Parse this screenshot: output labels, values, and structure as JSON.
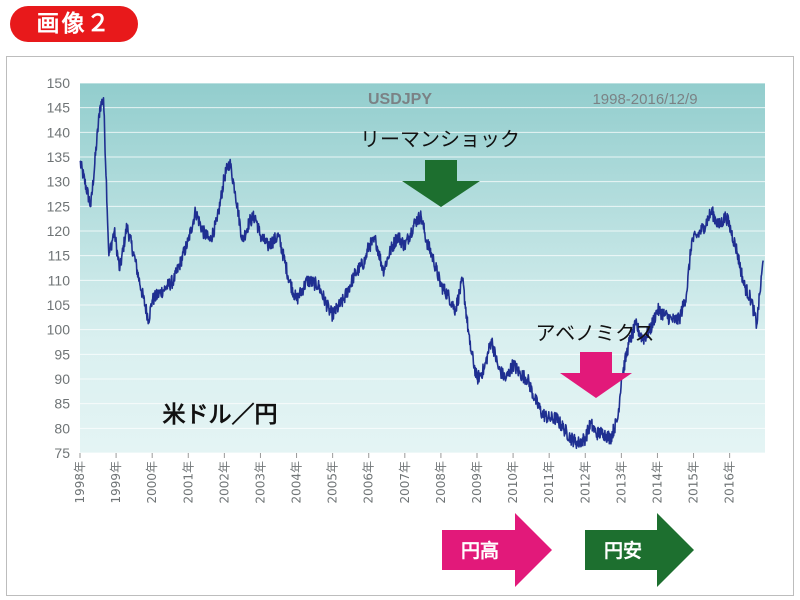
{
  "badge": "画像２",
  "chart_data": {
    "type": "line",
    "title": "USDJPY",
    "subtitle": "1998-2016/12/9",
    "xlabel": "",
    "ylabel": "",
    "ylim": [
      75,
      150
    ],
    "y_ticks": [
      150,
      145,
      140,
      135,
      130,
      125,
      120,
      115,
      110,
      105,
      100,
      95,
      90,
      85,
      80,
      75
    ],
    "x_ticks": [
      "1998年",
      "1999年",
      "2000年",
      "2001年",
      "2002年",
      "2003年",
      "2004年",
      "2005年",
      "2006年",
      "2007年",
      "2008年",
      "2009年",
      "2010年",
      "2011年",
      "2012年",
      "2013年",
      "2014年",
      "2015年",
      "2016年"
    ],
    "grid": true,
    "series_name": "米ドル／円",
    "series": [
      {
        "name": "",
        "x": [
          1998.0,
          1998.3,
          1998.55,
          1998.65,
          1998.8,
          1998.95,
          1999.1,
          1999.3,
          1999.5,
          1999.7,
          1999.9,
          2000.0,
          2000.3,
          2000.6,
          2000.8,
          2001.0,
          2001.2,
          2001.4,
          2001.6,
          2001.8,
          2002.0,
          2002.15,
          2002.3,
          2002.5,
          2002.7,
          2002.85,
          2003.0,
          2003.2,
          2003.5,
          2003.8,
          2004.0,
          2004.3,
          2004.6,
          2004.9,
          2005.0,
          2005.3,
          2005.6,
          2005.9,
          2006.0,
          2006.2,
          2006.4,
          2006.6,
          2006.8,
          2007.0,
          2007.3,
          2007.45,
          2007.6,
          2007.8,
          2008.0,
          2008.2,
          2008.4,
          2008.6,
          2008.8,
          2009.0,
          2009.2,
          2009.4,
          2009.6,
          2009.8,
          2010.0,
          2010.2,
          2010.4,
          2010.6,
          2010.8,
          2011.0,
          2011.2,
          2011.4,
          2011.6,
          2011.8,
          2012.0,
          2012.15,
          2012.3,
          2012.5,
          2012.7,
          2012.9,
          2013.0,
          2013.2,
          2013.4,
          2013.6,
          2013.8,
          2014.0,
          2014.2,
          2014.4,
          2014.6,
          2014.8,
          2014.95,
          2015.1,
          2015.3,
          2015.5,
          2015.7,
          2015.9,
          2016.0,
          2016.2,
          2016.4,
          2016.6,
          2016.75,
          2016.93
        ],
        "values": [
          134,
          125,
          145,
          147,
          115,
          120,
          112,
          121,
          115,
          108,
          102,
          106,
          108,
          110,
          114,
          118,
          124,
          120,
          118,
          122,
          131,
          134,
          128,
          118,
          122,
          123,
          119,
          117,
          119,
          110,
          106,
          110,
          109,
          104,
          103,
          106,
          111,
          114,
          117,
          118,
          112,
          116,
          119,
          117,
          122,
          123,
          118,
          114,
          109,
          107,
          104,
          110,
          97,
          90,
          92,
          98,
          92,
          90,
          93,
          91,
          90,
          86,
          83,
          82,
          82,
          80,
          78,
          77,
          78,
          81,
          79,
          79,
          78,
          82,
          90,
          97,
          101,
          98,
          100,
          104,
          103,
          102,
          102,
          107,
          118,
          119,
          121,
          124,
          121,
          123,
          121,
          116,
          109,
          106,
          101,
          114
        ]
      }
    ],
    "annotations": {
      "lehman": "リーマンショック",
      "abenomics": "アベノミクス",
      "yen_high": "円高",
      "yen_low": "円安"
    },
    "colors": {
      "line": "#1f2f91",
      "bg_light": "#daf0f0",
      "bg_dark": "#92cdcd",
      "green": "#1d6f2f",
      "pink": "#e2197a"
    }
  }
}
